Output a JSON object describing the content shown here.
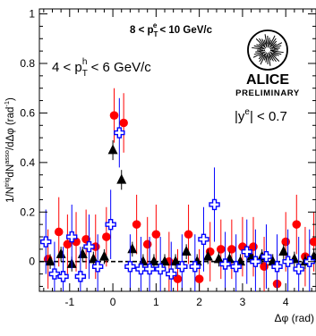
{
  "chart_data": {
    "type": "scatter",
    "xlabel": "Δφ (rad)",
    "ylabel": "1/N^trig dN^asso/dΔφ (rad^-1)",
    "ylabel_parts": {
      "base": "1/N",
      "sup1": "trig",
      "mid": "dN",
      "sup2": "asso",
      "tail": "/dΔφ (rad",
      "sup3": "-1",
      "close": ")"
    },
    "xlim": [
      -1.7,
      4.7
    ],
    "ylim": [
      -0.12,
      1.02
    ],
    "x_ticks": [
      {
        "v": -1,
        "label": "-1"
      },
      {
        "v": 0,
        "label": "0"
      },
      {
        "v": 1,
        "label": "1"
      },
      {
        "v": 2,
        "label": "2"
      },
      {
        "v": 3,
        "label": "3"
      },
      {
        "v": 4,
        "label": "4"
      }
    ],
    "y_ticks": [
      {
        "v": 0,
        "label": "0"
      },
      {
        "v": 0.2,
        "label": "0.2"
      },
      {
        "v": 0.4,
        "label": "0.4"
      },
      {
        "v": 0.6,
        "label": "0.6"
      },
      {
        "v": 0.8,
        "label": "0.8"
      },
      {
        "v": 1,
        "label": "1"
      }
    ],
    "zero_line": true,
    "annotations": {
      "pt_e": {
        "pre": "8 < p",
        "sub": "T",
        "sup": "e",
        "post": " < 10 GeV/c"
      },
      "pt_h": {
        "pre": "4 < p",
        "sub": "T",
        "sup": "h",
        "post": " < 6 GeV/c"
      },
      "rapidity": {
        "pre": "|y",
        "sup": "e",
        "post": "| < 0.7"
      },
      "logo_text": "ALICE",
      "preliminary": "PRELIMINARY"
    },
    "series": [
      {
        "marker": "circle",
        "color": "#ff0000",
        "error_color": "#ff0000",
        "points": [
          {
            "x": -1.5,
            "y": 0.01,
            "e": 0.12
          },
          {
            "x": -1.25,
            "y": 0.12,
            "e": 0.14
          },
          {
            "x": -1.05,
            "y": 0.07,
            "e": 0.12
          },
          {
            "x": -0.85,
            "y": 0.08,
            "e": 0.12
          },
          {
            "x": -0.62,
            "y": 0.09,
            "e": 0.12
          },
          {
            "x": -0.4,
            "y": 0.06,
            "e": 0.13
          },
          {
            "x": -0.15,
            "y": 0.1,
            "e": 0.12
          },
          {
            "x": 0.03,
            "y": 0.59,
            "e": 0.11
          },
          {
            "x": 0.25,
            "y": 0.56,
            "e": 0.12
          },
          {
            "x": 0.55,
            "y": 0.15,
            "e": 0.12
          },
          {
            "x": 0.8,
            "y": 0.07,
            "e": 0.11
          },
          {
            "x": 1.0,
            "y": 0.11,
            "e": 0.12
          },
          {
            "x": 1.3,
            "y": 0.0,
            "e": 0.12
          },
          {
            "x": 1.5,
            "y": -0.07,
            "e": 0.12
          },
          {
            "x": 1.75,
            "y": 0.11,
            "e": 0.12
          },
          {
            "x": 2.0,
            "y": -0.07,
            "e": 0.12
          },
          {
            "x": 2.25,
            "y": 0.04,
            "e": 0.12
          },
          {
            "x": 2.5,
            "y": 0.05,
            "e": 0.12
          },
          {
            "x": 2.75,
            "y": 0.05,
            "e": 0.12
          },
          {
            "x": 3.0,
            "y": 0.06,
            "e": 0.12
          },
          {
            "x": 3.25,
            "y": 0.06,
            "e": 0.12
          },
          {
            "x": 3.5,
            "y": -0.02,
            "e": 0.12
          },
          {
            "x": 3.8,
            "y": -0.09,
            "e": 0.12
          },
          {
            "x": 4.0,
            "y": 0.08,
            "e": 0.12
          },
          {
            "x": 4.25,
            "y": 0.15,
            "e": 0.12
          },
          {
            "x": 4.45,
            "y": 0.02,
            "e": 0.12
          },
          {
            "x": 4.65,
            "y": 0.08,
            "e": 0.12
          }
        ]
      },
      {
        "marker": "triangle",
        "color": "#000000",
        "error_color": "#000000",
        "points": [
          {
            "x": -1.45,
            "y": 0.0,
            "e": 0.03
          },
          {
            "x": -1.2,
            "y": 0.03,
            "e": 0.03
          },
          {
            "x": -0.95,
            "y": -0.01,
            "e": 0.03
          },
          {
            "x": -0.7,
            "y": 0.03,
            "e": 0.03
          },
          {
            "x": -0.45,
            "y": 0.01,
            "e": 0.03
          },
          {
            "x": -0.2,
            "y": 0.02,
            "e": 0.03
          },
          {
            "x": 0.0,
            "y": 0.45,
            "e": 0.04
          },
          {
            "x": 0.2,
            "y": 0.33,
            "e": 0.04
          },
          {
            "x": 0.45,
            "y": 0.05,
            "e": 0.03
          },
          {
            "x": 0.7,
            "y": 0.0,
            "e": 0.03
          },
          {
            "x": 0.95,
            "y": 0.0,
            "e": 0.03
          },
          {
            "x": 1.2,
            "y": 0.0,
            "e": 0.03
          },
          {
            "x": 1.45,
            "y": 0.0,
            "e": 0.03
          },
          {
            "x": 1.7,
            "y": 0.04,
            "e": 0.03
          },
          {
            "x": 1.95,
            "y": 0.0,
            "e": 0.03
          },
          {
            "x": 2.2,
            "y": 0.02,
            "e": 0.03
          },
          {
            "x": 2.45,
            "y": 0.01,
            "e": 0.03
          },
          {
            "x": 2.7,
            "y": 0.01,
            "e": 0.03
          },
          {
            "x": 2.95,
            "y": 0.0,
            "e": 0.03
          },
          {
            "x": 3.2,
            "y": 0.02,
            "e": 0.03
          },
          {
            "x": 3.45,
            "y": 0.02,
            "e": 0.03
          },
          {
            "x": 3.7,
            "y": 0.0,
            "e": 0.03
          },
          {
            "x": 3.95,
            "y": 0.04,
            "e": 0.03
          },
          {
            "x": 4.2,
            "y": 0.01,
            "e": 0.03
          },
          {
            "x": 4.45,
            "y": 0.0,
            "e": 0.03
          },
          {
            "x": 4.65,
            "y": 0.02,
            "e": 0.03
          }
        ]
      },
      {
        "marker": "cross-open",
        "color": "#0000ff",
        "error_color": "#0000ff",
        "points": [
          {
            "x": -1.55,
            "y": 0.08,
            "e": 0.13
          },
          {
            "x": -1.35,
            "y": -0.05,
            "e": 0.13
          },
          {
            "x": -1.15,
            "y": -0.06,
            "e": 0.12
          },
          {
            "x": -0.95,
            "y": 0.1,
            "e": 0.13
          },
          {
            "x": -0.75,
            "y": -0.06,
            "e": 0.12
          },
          {
            "x": -0.55,
            "y": 0.06,
            "e": 0.13
          },
          {
            "x": -0.35,
            "y": -0.02,
            "e": 0.13
          },
          {
            "x": -0.05,
            "y": 0.15,
            "e": 0.14
          },
          {
            "x": 0.15,
            "y": 0.52,
            "e": 0.14
          },
          {
            "x": 0.4,
            "y": -0.02,
            "e": 0.13
          },
          {
            "x": 0.65,
            "y": -0.03,
            "e": 0.13
          },
          {
            "x": 0.85,
            "y": -0.03,
            "e": 0.13
          },
          {
            "x": 1.1,
            "y": -0.03,
            "e": 0.13
          },
          {
            "x": 1.35,
            "y": -0.05,
            "e": 0.13
          },
          {
            "x": 1.6,
            "y": -0.02,
            "e": 0.13
          },
          {
            "x": 1.9,
            "y": -0.02,
            "e": 0.13
          },
          {
            "x": 2.1,
            "y": 0.09,
            "e": 0.13
          },
          {
            "x": 2.35,
            "y": 0.23,
            "e": 0.15
          },
          {
            "x": 2.6,
            "y": -0.01,
            "e": 0.13
          },
          {
            "x": 2.85,
            "y": -0.02,
            "e": 0.13
          },
          {
            "x": 3.1,
            "y": 0.04,
            "e": 0.13
          },
          {
            "x": 3.3,
            "y": 0.0,
            "e": 0.13
          },
          {
            "x": 3.55,
            "y": 0.02,
            "e": 0.13
          },
          {
            "x": 3.8,
            "y": -0.02,
            "e": 0.13
          },
          {
            "x": 4.05,
            "y": 0.0,
            "e": 0.13
          },
          {
            "x": 4.3,
            "y": -0.03,
            "e": 0.13
          },
          {
            "x": 4.55,
            "y": 0.0,
            "e": 0.13
          }
        ]
      }
    ]
  }
}
